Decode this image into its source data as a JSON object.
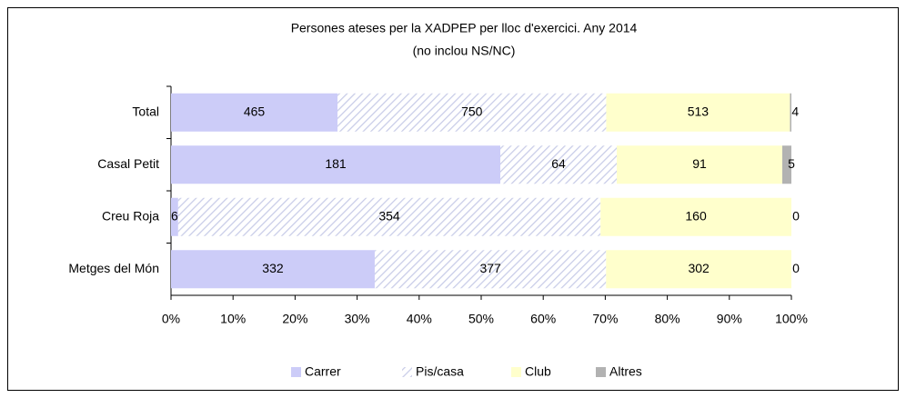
{
  "chart_data": {
    "type": "bar",
    "orientation": "horizontal",
    "stacking": "percent",
    "title": "Persones ateses per la XADPEP per lloc d'exercici. Any 2014",
    "subtitle": "(no inclou NS/NC)",
    "categories": [
      "Total",
      "Casal Petit",
      "Creu Roja",
      "Metges del Món"
    ],
    "series": [
      {
        "name": "Carrer",
        "color": "#ccccf8",
        "values": [
          465,
          181,
          6,
          332
        ]
      },
      {
        "name": "Pis/casa",
        "color": "#c8cce8",
        "pattern": "hatch",
        "values": [
          750,
          64,
          354,
          377
        ]
      },
      {
        "name": "Club",
        "color": "#ffffcc",
        "values": [
          513,
          91,
          160,
          302
        ]
      },
      {
        "name": "Altres",
        "color": "#b2b2b2",
        "values": [
          4,
          5,
          0,
          0
        ]
      }
    ],
    "xlim": [
      0,
      100
    ],
    "xticks": [
      {
        "value": 0,
        "label": "0%"
      },
      {
        "value": 10,
        "label": "10%"
      },
      {
        "value": 20,
        "label": "20%"
      },
      {
        "value": 30,
        "label": "30%"
      },
      {
        "value": 40,
        "label": "40%"
      },
      {
        "value": 50,
        "label": "50%"
      },
      {
        "value": 60,
        "label": "60%"
      },
      {
        "value": 70,
        "label": "70%"
      },
      {
        "value": 80,
        "label": "80%"
      },
      {
        "value": 90,
        "label": "90%"
      },
      {
        "value": 100,
        "label": "100%"
      }
    ],
    "legend": "bottom"
  }
}
